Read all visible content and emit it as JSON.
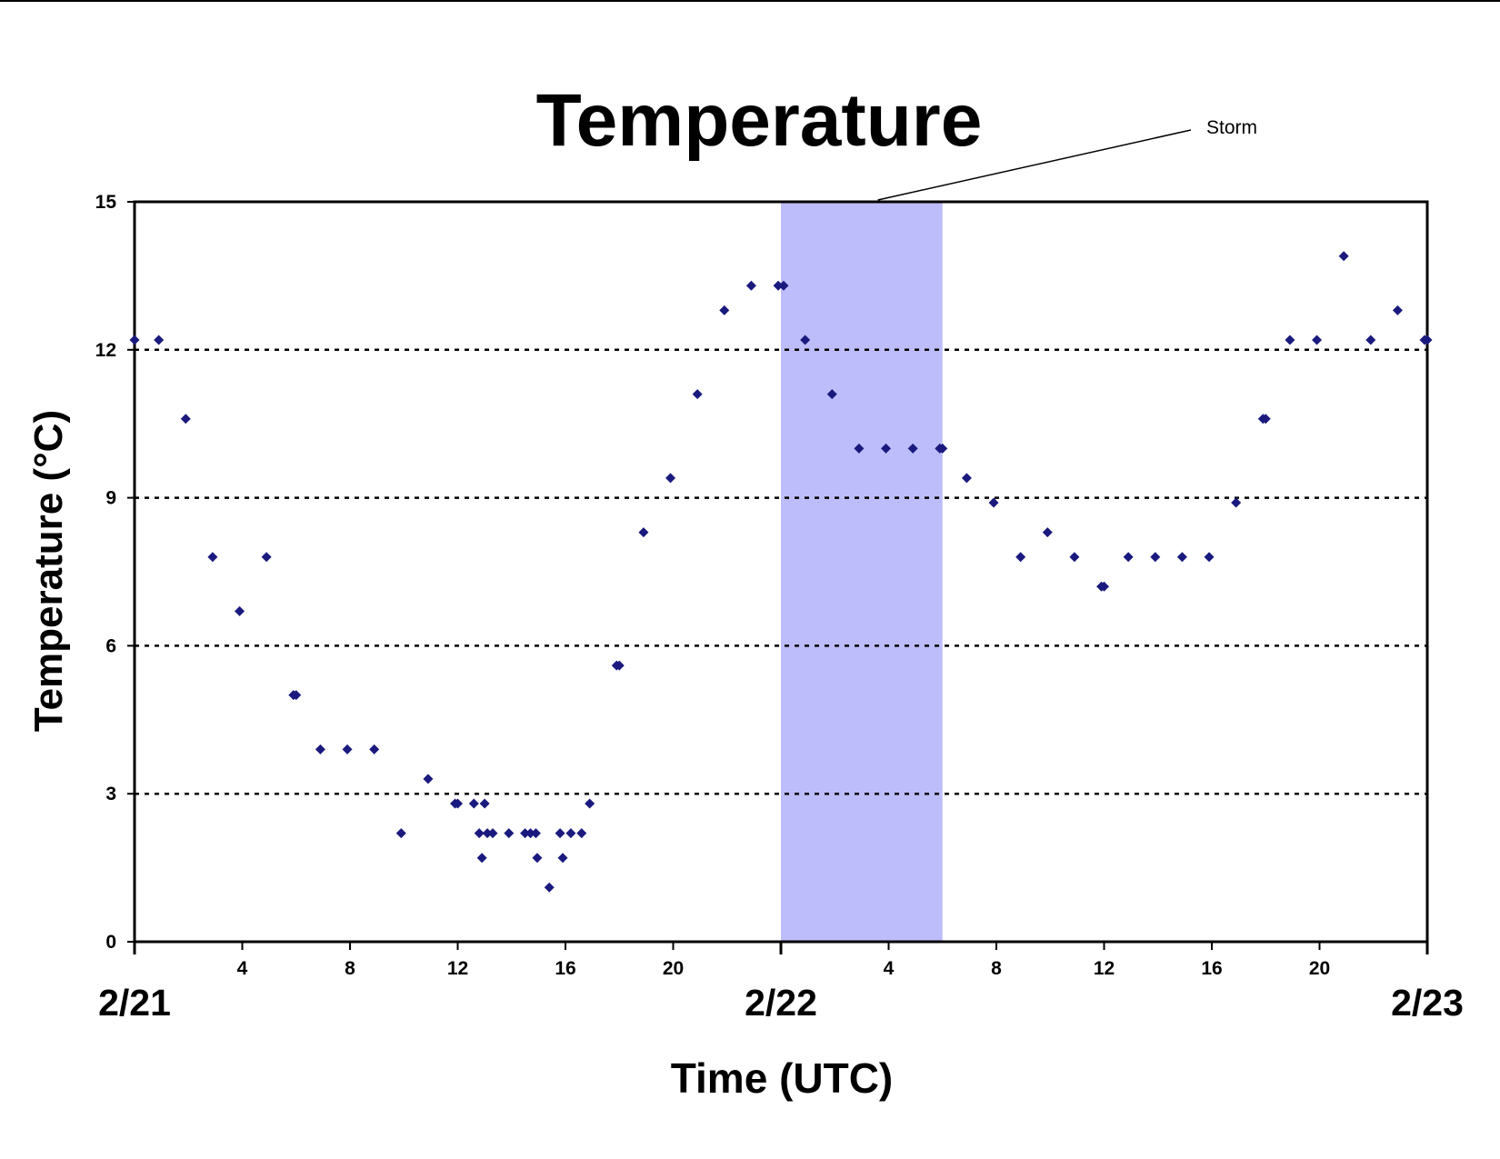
{
  "chart_data": {
    "type": "scatter",
    "title": "Temperature",
    "xlabel": "Time (UTC)",
    "ylabel": "Temperature (°C)",
    "ylim": [
      0,
      15
    ],
    "yticks": [
      0,
      3,
      6,
      9,
      12,
      15
    ],
    "y_gridlines": [
      3,
      6,
      9,
      12
    ],
    "grid_style": "dotted",
    "xlim_hours": [
      0,
      48
    ],
    "xticks": [
      {
        "hour": 4,
        "label": "4"
      },
      {
        "hour": 8,
        "label": "8"
      },
      {
        "hour": 12,
        "label": "12"
      },
      {
        "hour": 16,
        "label": "16"
      },
      {
        "hour": 20,
        "label": "20"
      },
      {
        "hour": 28,
        "label": "4"
      },
      {
        "hour": 32,
        "label": "8"
      },
      {
        "hour": 36,
        "label": "12"
      },
      {
        "hour": 40,
        "label": "16"
      },
      {
        "hour": 44,
        "label": "20"
      }
    ],
    "date_labels": [
      {
        "hour": 0,
        "label": "2/21"
      },
      {
        "hour": 24,
        "label": "2/22"
      },
      {
        "hour": 48,
        "label": "2/23"
      }
    ],
    "shaded_region": {
      "label": "Storm",
      "x_start_hour": 24,
      "x_end_hour": 30,
      "color": "#bdbdfb"
    },
    "marker_color": "#1a1a7e",
    "series": [
      {
        "points": [
          [
            0.0,
            12.2
          ],
          [
            0.9,
            12.2
          ],
          [
            1.9,
            10.6
          ],
          [
            2.9,
            7.8
          ],
          [
            3.9,
            6.7
          ],
          [
            4.9,
            7.8
          ],
          [
            5.9,
            5.0
          ],
          [
            6.0,
            5.0
          ],
          [
            6.9,
            3.9
          ],
          [
            7.9,
            3.9
          ],
          [
            8.9,
            3.9
          ],
          [
            9.9,
            2.2
          ],
          [
            10.9,
            3.3
          ],
          [
            11.9,
            2.8
          ],
          [
            12.0,
            2.8
          ],
          [
            12.6,
            2.8
          ],
          [
            12.8,
            2.2
          ],
          [
            12.9,
            1.7
          ],
          [
            13.0,
            2.8
          ],
          [
            13.1,
            2.2
          ],
          [
            13.3,
            2.2
          ],
          [
            13.9,
            2.2
          ],
          [
            14.5,
            2.2
          ],
          [
            14.7,
            2.2
          ],
          [
            14.9,
            2.2
          ],
          [
            14.95,
            1.7
          ],
          [
            15.4,
            1.1
          ],
          [
            15.8,
            2.2
          ],
          [
            15.9,
            1.7
          ],
          [
            16.2,
            2.2
          ],
          [
            16.6,
            2.2
          ],
          [
            16.9,
            2.8
          ],
          [
            17.9,
            5.6
          ],
          [
            18.0,
            5.6
          ],
          [
            18.9,
            8.3
          ],
          [
            19.9,
            9.4
          ],
          [
            20.9,
            11.1
          ],
          [
            21.9,
            12.8
          ],
          [
            22.9,
            13.3
          ],
          [
            23.9,
            13.3
          ],
          [
            24.1,
            13.3
          ],
          [
            24.9,
            12.2
          ],
          [
            25.9,
            11.1
          ],
          [
            26.9,
            10.0
          ],
          [
            27.9,
            10.0
          ],
          [
            28.9,
            10.0
          ],
          [
            29.9,
            10.0
          ],
          [
            30.0,
            10.0
          ],
          [
            30.9,
            9.4
          ],
          [
            31.9,
            8.9
          ],
          [
            32.9,
            7.8
          ],
          [
            33.9,
            8.3
          ],
          [
            34.9,
            7.8
          ],
          [
            35.9,
            7.2
          ],
          [
            36.0,
            7.2
          ],
          [
            36.9,
            7.8
          ],
          [
            37.9,
            7.8
          ],
          [
            38.9,
            7.8
          ],
          [
            39.9,
            7.8
          ],
          [
            40.9,
            8.9
          ],
          [
            41.9,
            10.6
          ],
          [
            42.0,
            10.6
          ],
          [
            42.9,
            12.2
          ],
          [
            43.9,
            12.2
          ],
          [
            44.9,
            13.9
          ],
          [
            45.9,
            12.2
          ],
          [
            46.9,
            12.8
          ],
          [
            47.9,
            12.2
          ],
          [
            48.0,
            12.2
          ]
        ]
      }
    ]
  }
}
